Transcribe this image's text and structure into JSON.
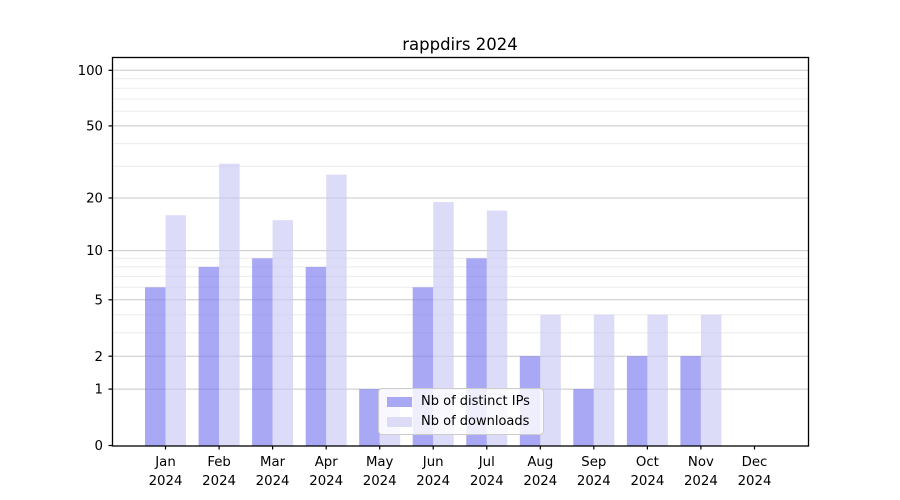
{
  "title": "rappdirs 2024",
  "chart_data": {
    "type": "bar",
    "title": "rappdirs 2024",
    "xlabel": "",
    "ylabel": "",
    "grid": true,
    "legend_position": "lower center-left (overlapping May)",
    "y_axis": {
      "scale": "log1p",
      "major_ticks": [
        0,
        1,
        2,
        5,
        10,
        20,
        50,
        100
      ],
      "major_tick_labels": [
        "0",
        "1",
        "2",
        "5",
        "10",
        "20",
        "50",
        "100"
      ],
      "minor_gridlines": [
        3,
        4,
        6,
        7,
        8,
        9,
        30,
        40,
        60,
        70,
        80,
        90
      ],
      "ylim": [
        0,
        117
      ]
    },
    "categories": [
      {
        "month": "Jan",
        "year": "2024"
      },
      {
        "month": "Feb",
        "year": "2024"
      },
      {
        "month": "Mar",
        "year": "2024"
      },
      {
        "month": "Apr",
        "year": "2024"
      },
      {
        "month": "May",
        "year": "2024"
      },
      {
        "month": "Jun",
        "year": "2024"
      },
      {
        "month": "Jul",
        "year": "2024"
      },
      {
        "month": "Aug",
        "year": "2024"
      },
      {
        "month": "Sep",
        "year": "2024"
      },
      {
        "month": "Oct",
        "year": "2024"
      },
      {
        "month": "Nov",
        "year": "2024"
      },
      {
        "month": "Dec",
        "year": "2024"
      }
    ],
    "series": [
      {
        "name": "Nb of distinct IPs",
        "color_solid": "#a8a8f4",
        "color_fill": "rgba(122,122,238,0.65)",
        "values": [
          6,
          8,
          9,
          8,
          1,
          6,
          9,
          2,
          1,
          2,
          2,
          0
        ]
      },
      {
        "name": "Nb of downloads",
        "color_solid": "#dcdcf8",
        "color_fill": "rgba(201,201,245,0.65)",
        "values": [
          16,
          31,
          15,
          27,
          1,
          19,
          17,
          4,
          4,
          4,
          4,
          0
        ]
      }
    ],
    "colors": {
      "major_gridline": "#c8c8c8",
      "minor_gridline": "#ececec",
      "axis_spine": "#000000",
      "text": "#000000"
    }
  }
}
